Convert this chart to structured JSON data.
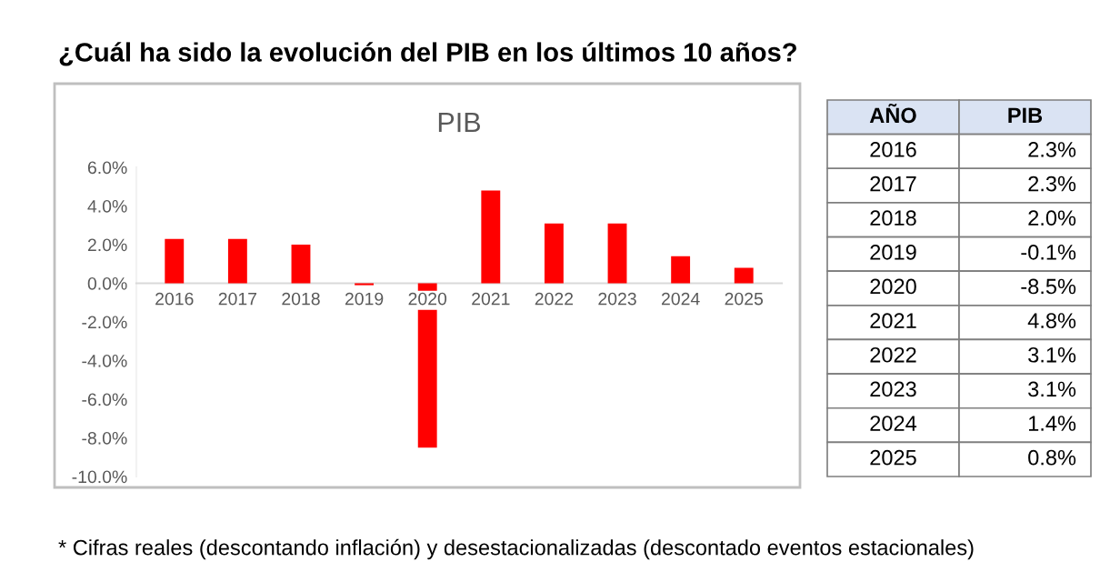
{
  "chart_data": {
    "type": "bar",
    "title": "PIB",
    "subtitle": "¿Cuál ha sido la evolución del PIB en los últimos 10 años?",
    "categories": [
      "2016",
      "2017",
      "2018",
      "2019",
      "2020",
      "2021",
      "2022",
      "2023",
      "2024",
      "2025"
    ],
    "values": [
      2.3,
      2.3,
      2.0,
      -0.1,
      -8.5,
      4.8,
      3.1,
      3.1,
      1.4,
      0.8
    ],
    "color": "#ff0000",
    "ylim": [
      -10,
      6
    ],
    "yticks": [
      {
        "value": 6,
        "label": "6.0%"
      },
      {
        "value": 4,
        "label": "4.0%"
      },
      {
        "value": 2,
        "label": "2.0%"
      },
      {
        "value": 0,
        "label": "0.0%"
      },
      {
        "value": -2,
        "label": "-2.0%"
      },
      {
        "value": -4,
        "label": "-4.0%"
      },
      {
        "value": -6,
        "label": "-6.0%"
      },
      {
        "value": -8,
        "label": "-8.0%"
      },
      {
        "value": -10,
        "label": "-10.0%"
      }
    ],
    "grid": false,
    "legend": false,
    "annotations": [
      "* Cifras reales (descontando inflación) y desestacionalizadas (descontado eventos estacionales)",
      "AÑO",
      "PIB",
      "2016",
      "2.3%",
      "2017",
      "2.3%",
      "2018",
      "2.0%",
      "2019",
      "-0.1%",
      "2020",
      "-8.5%",
      "2021",
      "4.8%",
      "2022",
      "3.1%",
      "2023",
      "3.1%",
      "2024",
      "1.4%",
      "2025",
      "0.8%"
    ]
  }
}
